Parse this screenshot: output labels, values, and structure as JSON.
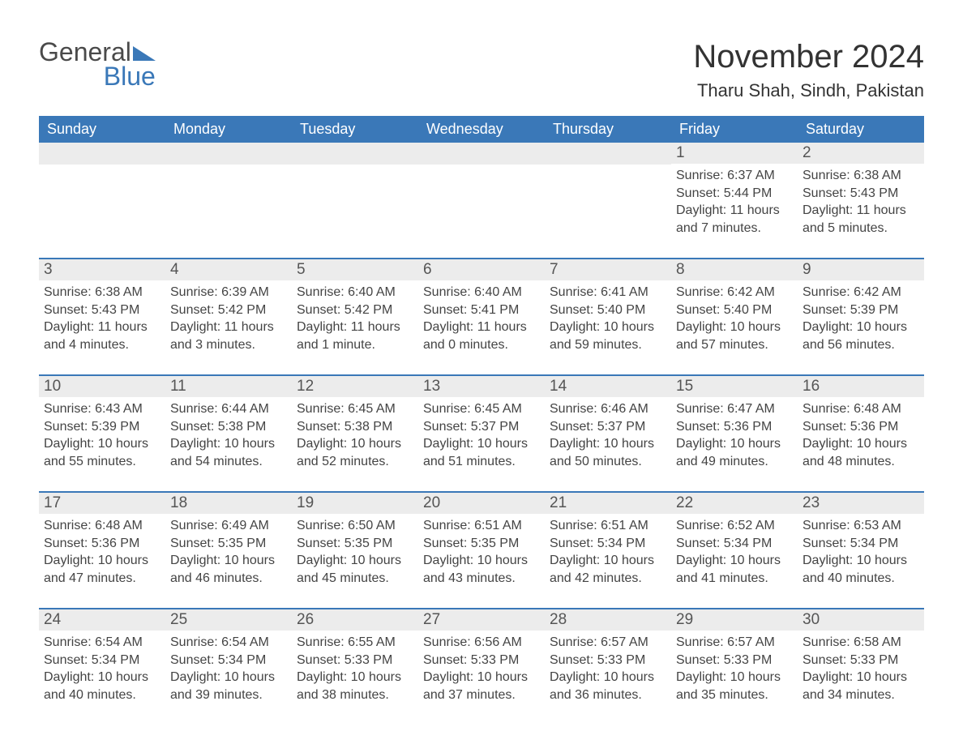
{
  "brand": {
    "word1": "General",
    "word2": "Blue"
  },
  "title": "November 2024",
  "location": "Tharu Shah, Sindh, Pakistan",
  "colors": {
    "header_bg": "#3a78b8",
    "header_text": "#ffffff",
    "daynum_bg": "#ececec",
    "body_text": "#444444",
    "page_bg": "#ffffff"
  },
  "typography": {
    "title_fontsize": 40,
    "location_fontsize": 22,
    "dow_fontsize": 18,
    "daynum_fontsize": 19,
    "info_fontsize": 16
  },
  "grid": {
    "columns": 7,
    "rows": 5,
    "start_dow_index": 5
  },
  "dow": [
    "Sunday",
    "Monday",
    "Tuesday",
    "Wednesday",
    "Thursday",
    "Friday",
    "Saturday"
  ],
  "days": [
    {
      "n": "1",
      "sunrise": "Sunrise: 6:37 AM",
      "sunset": "Sunset: 5:44 PM",
      "daylight": "Daylight: 11 hours and 7 minutes."
    },
    {
      "n": "2",
      "sunrise": "Sunrise: 6:38 AM",
      "sunset": "Sunset: 5:43 PM",
      "daylight": "Daylight: 11 hours and 5 minutes."
    },
    {
      "n": "3",
      "sunrise": "Sunrise: 6:38 AM",
      "sunset": "Sunset: 5:43 PM",
      "daylight": "Daylight: 11 hours and 4 minutes."
    },
    {
      "n": "4",
      "sunrise": "Sunrise: 6:39 AM",
      "sunset": "Sunset: 5:42 PM",
      "daylight": "Daylight: 11 hours and 3 minutes."
    },
    {
      "n": "5",
      "sunrise": "Sunrise: 6:40 AM",
      "sunset": "Sunset: 5:42 PM",
      "daylight": "Daylight: 11 hours and 1 minute."
    },
    {
      "n": "6",
      "sunrise": "Sunrise: 6:40 AM",
      "sunset": "Sunset: 5:41 PM",
      "daylight": "Daylight: 11 hours and 0 minutes."
    },
    {
      "n": "7",
      "sunrise": "Sunrise: 6:41 AM",
      "sunset": "Sunset: 5:40 PM",
      "daylight": "Daylight: 10 hours and 59 minutes."
    },
    {
      "n": "8",
      "sunrise": "Sunrise: 6:42 AM",
      "sunset": "Sunset: 5:40 PM",
      "daylight": "Daylight: 10 hours and 57 minutes."
    },
    {
      "n": "9",
      "sunrise": "Sunrise: 6:42 AM",
      "sunset": "Sunset: 5:39 PM",
      "daylight": "Daylight: 10 hours and 56 minutes."
    },
    {
      "n": "10",
      "sunrise": "Sunrise: 6:43 AM",
      "sunset": "Sunset: 5:39 PM",
      "daylight": "Daylight: 10 hours and 55 minutes."
    },
    {
      "n": "11",
      "sunrise": "Sunrise: 6:44 AM",
      "sunset": "Sunset: 5:38 PM",
      "daylight": "Daylight: 10 hours and 54 minutes."
    },
    {
      "n": "12",
      "sunrise": "Sunrise: 6:45 AM",
      "sunset": "Sunset: 5:38 PM",
      "daylight": "Daylight: 10 hours and 52 minutes."
    },
    {
      "n": "13",
      "sunrise": "Sunrise: 6:45 AM",
      "sunset": "Sunset: 5:37 PM",
      "daylight": "Daylight: 10 hours and 51 minutes."
    },
    {
      "n": "14",
      "sunrise": "Sunrise: 6:46 AM",
      "sunset": "Sunset: 5:37 PM",
      "daylight": "Daylight: 10 hours and 50 minutes."
    },
    {
      "n": "15",
      "sunrise": "Sunrise: 6:47 AM",
      "sunset": "Sunset: 5:36 PM",
      "daylight": "Daylight: 10 hours and 49 minutes."
    },
    {
      "n": "16",
      "sunrise": "Sunrise: 6:48 AM",
      "sunset": "Sunset: 5:36 PM",
      "daylight": "Daylight: 10 hours and 48 minutes."
    },
    {
      "n": "17",
      "sunrise": "Sunrise: 6:48 AM",
      "sunset": "Sunset: 5:36 PM",
      "daylight": "Daylight: 10 hours and 47 minutes."
    },
    {
      "n": "18",
      "sunrise": "Sunrise: 6:49 AM",
      "sunset": "Sunset: 5:35 PM",
      "daylight": "Daylight: 10 hours and 46 minutes."
    },
    {
      "n": "19",
      "sunrise": "Sunrise: 6:50 AM",
      "sunset": "Sunset: 5:35 PM",
      "daylight": "Daylight: 10 hours and 45 minutes."
    },
    {
      "n": "20",
      "sunrise": "Sunrise: 6:51 AM",
      "sunset": "Sunset: 5:35 PM",
      "daylight": "Daylight: 10 hours and 43 minutes."
    },
    {
      "n": "21",
      "sunrise": "Sunrise: 6:51 AM",
      "sunset": "Sunset: 5:34 PM",
      "daylight": "Daylight: 10 hours and 42 minutes."
    },
    {
      "n": "22",
      "sunrise": "Sunrise: 6:52 AM",
      "sunset": "Sunset: 5:34 PM",
      "daylight": "Daylight: 10 hours and 41 minutes."
    },
    {
      "n": "23",
      "sunrise": "Sunrise: 6:53 AM",
      "sunset": "Sunset: 5:34 PM",
      "daylight": "Daylight: 10 hours and 40 minutes."
    },
    {
      "n": "24",
      "sunrise": "Sunrise: 6:54 AM",
      "sunset": "Sunset: 5:34 PM",
      "daylight": "Daylight: 10 hours and 40 minutes."
    },
    {
      "n": "25",
      "sunrise": "Sunrise: 6:54 AM",
      "sunset": "Sunset: 5:34 PM",
      "daylight": "Daylight: 10 hours and 39 minutes."
    },
    {
      "n": "26",
      "sunrise": "Sunrise: 6:55 AM",
      "sunset": "Sunset: 5:33 PM",
      "daylight": "Daylight: 10 hours and 38 minutes."
    },
    {
      "n": "27",
      "sunrise": "Sunrise: 6:56 AM",
      "sunset": "Sunset: 5:33 PM",
      "daylight": "Daylight: 10 hours and 37 minutes."
    },
    {
      "n": "28",
      "sunrise": "Sunrise: 6:57 AM",
      "sunset": "Sunset: 5:33 PM",
      "daylight": "Daylight: 10 hours and 36 minutes."
    },
    {
      "n": "29",
      "sunrise": "Sunrise: 6:57 AM",
      "sunset": "Sunset: 5:33 PM",
      "daylight": "Daylight: 10 hours and 35 minutes."
    },
    {
      "n": "30",
      "sunrise": "Sunrise: 6:58 AM",
      "sunset": "Sunset: 5:33 PM",
      "daylight": "Daylight: 10 hours and 34 minutes."
    }
  ]
}
